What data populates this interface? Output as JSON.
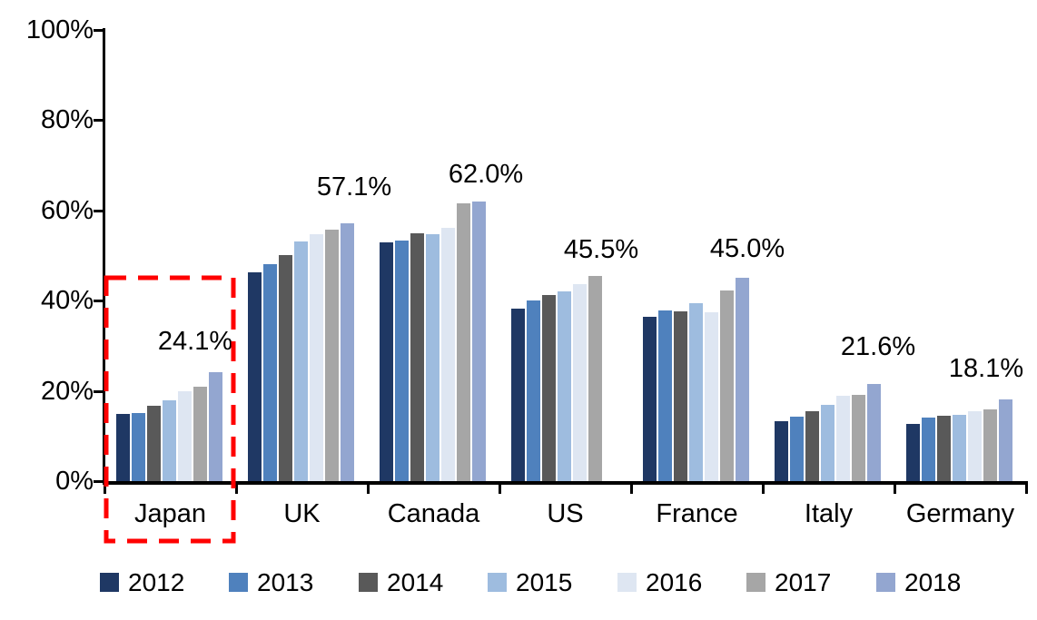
{
  "chart_data": {
    "type": "bar",
    "title": "",
    "xlabel": "",
    "ylabel": "",
    "categories": [
      "Japan",
      "UK",
      "Canada",
      "US",
      "France",
      "Italy",
      "Germany"
    ],
    "series": [
      {
        "name": "2012",
        "color": "#1F3864",
        "values": [
          14.9,
          46.3,
          53.0,
          38.2,
          36.5,
          13.3,
          12.6
        ]
      },
      {
        "name": "2013",
        "color": "#4F81BD",
        "values": [
          15.1,
          48.0,
          53.3,
          40.0,
          37.8,
          14.2,
          14.0
        ]
      },
      {
        "name": "2014",
        "color": "#595959",
        "values": [
          16.7,
          50.0,
          55.0,
          41.2,
          37.6,
          15.4,
          14.4
        ]
      },
      {
        "name": "2015",
        "color": "#9EBCDF",
        "values": [
          18.0,
          53.2,
          54.7,
          42.1,
          39.4,
          16.9,
          14.7
        ]
      },
      {
        "name": "2016",
        "color": "#DEE6F2",
        "values": [
          20.0,
          54.8,
          56.2,
          43.6,
          37.4,
          19.0,
          15.4
        ]
      },
      {
        "name": "2017",
        "color": "#A6A6A6",
        "values": [
          21.0,
          55.8,
          61.5,
          45.5,
          42.2,
          19.2,
          15.9
        ]
      },
      {
        "name": "2018",
        "color": "#93A6D0",
        "values": [
          24.1,
          57.1,
          62.0,
          null,
          45.0,
          21.6,
          18.1
        ]
      }
    ],
    "data_labels": [
      {
        "category": "Japan",
        "text": "24.1%"
      },
      {
        "category": "UK",
        "text": "57.1%"
      },
      {
        "category": "Canada",
        "text": "62.0%"
      },
      {
        "category": "US",
        "text": "45.5%"
      },
      {
        "category": "France",
        "text": "45.0%"
      },
      {
        "category": "Italy",
        "text": "21.6%"
      },
      {
        "category": "Germany",
        "text": "18.1%"
      }
    ],
    "y_axis": {
      "min": 0,
      "max": 100,
      "tick_labels": [
        "0%",
        "20%",
        "40%",
        "60%",
        "80%",
        "100%"
      ],
      "grid": false
    },
    "legend": {
      "position": "bottom",
      "entries": [
        "2012",
        "2013",
        "2014",
        "2015",
        "2016",
        "2017",
        "2018"
      ]
    },
    "highlight_box": {
      "category": "Japan",
      "color": "#FF0000",
      "style": "dashed"
    },
    "colors": {
      "axis": "#000000",
      "text": "#000000",
      "background": "#FFFFFF"
    }
  }
}
